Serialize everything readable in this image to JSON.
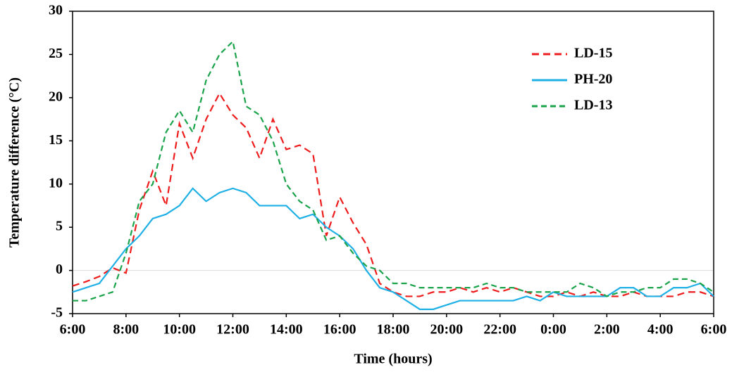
{
  "chart_data": {
    "type": "line",
    "x_label": "Time (hours)",
    "y_label": "Temperature difference (°C)",
    "x": [
      6,
      6.5,
      7,
      7.5,
      8,
      8.5,
      9,
      9.5,
      10,
      10.5,
      11,
      11.5,
      12,
      12.5,
      13,
      13.5,
      14,
      14.5,
      15,
      15.5,
      16,
      16.5,
      17,
      17.5,
      18,
      18.5,
      19,
      19.5,
      20,
      20.5,
      21,
      21.5,
      22,
      22.5,
      23,
      23.5,
      24,
      24.5,
      25,
      25.5,
      26,
      26.5,
      27,
      27.5,
      28,
      28.5,
      29,
      29.5,
      30
    ],
    "series": [
      {
        "name": "LD-15",
        "color": "#ee1c1c",
        "dash": "10,6",
        "values": [
          -1.8,
          -1.3,
          -0.7,
          0.3,
          -0.3,
          7,
          11.5,
          7.5,
          17,
          13,
          17.5,
          20.5,
          18,
          16.5,
          13,
          17.5,
          14,
          14.5,
          13.5,
          4,
          8.5,
          5.5,
          3,
          -1.5,
          -2.5,
          -3,
          -3,
          -2.5,
          -2.5,
          -2,
          -2.5,
          -2,
          -2.5,
          -2,
          -2.5,
          -3,
          -3,
          -2.5,
          -3,
          -2.5,
          -3,
          -3,
          -2.5,
          -3,
          -3,
          -3,
          -2.5,
          -2.5,
          -3
        ]
      },
      {
        "name": "PH-20",
        "color": "#1fb0e6",
        "dash": "none",
        "values": [
          -2.5,
          -2,
          -1.5,
          0.5,
          2.5,
          4,
          6,
          6.5,
          7.5,
          9.5,
          8,
          9,
          9.5,
          9,
          7.5,
          7.5,
          7.5,
          6,
          6.5,
          5,
          4,
          2.5,
          0,
          -2,
          -2.5,
          -3.5,
          -4.5,
          -4.5,
          -4,
          -3.5,
          -3.5,
          -3.5,
          -3.5,
          -3.5,
          -3,
          -3.5,
          -2.5,
          -3,
          -3,
          -3,
          -3,
          -2,
          -2,
          -3,
          -3,
          -2,
          -2,
          -1.5,
          -3
        ]
      },
      {
        "name": "LD-13",
        "color": "#1aa34a",
        "dash": "8,5",
        "values": [
          -3.5,
          -3.5,
          -3,
          -2.5,
          2,
          8,
          10,
          16,
          18.5,
          16,
          22,
          25,
          26.5,
          19,
          18,
          15,
          10,
          8,
          7,
          3.5,
          4,
          2,
          0.5,
          0,
          -1.5,
          -1.5,
          -2,
          -2,
          -2,
          -2,
          -2,
          -1.5,
          -2,
          -2,
          -2.5,
          -2.5,
          -2.5,
          -2.5,
          -1.5,
          -2,
          -3,
          -2.5,
          -2.5,
          -2,
          -2,
          -1,
          -1,
          -1.5,
          -2.5
        ]
      }
    ],
    "xlim": [
      6,
      30
    ],
    "xticks": [
      {
        "value": 6,
        "label": "6:00"
      },
      {
        "value": 8,
        "label": "8:00"
      },
      {
        "value": 10,
        "label": "10:00"
      },
      {
        "value": 12,
        "label": "12:00"
      },
      {
        "value": 14,
        "label": "14:00"
      },
      {
        "value": 16,
        "label": "16:00"
      },
      {
        "value": 18,
        "label": "18:00"
      },
      {
        "value": 20,
        "label": "20:00"
      },
      {
        "value": 22,
        "label": "22:00"
      },
      {
        "value": 24,
        "label": "0:00"
      },
      {
        "value": 26,
        "label": "2:00"
      },
      {
        "value": 28,
        "label": "4:00"
      },
      {
        "value": 30,
        "label": "6:00"
      }
    ],
    "ylim": [
      -5,
      30
    ],
    "yticks": [
      -5,
      0,
      5,
      10,
      15,
      20,
      25,
      30
    ]
  }
}
